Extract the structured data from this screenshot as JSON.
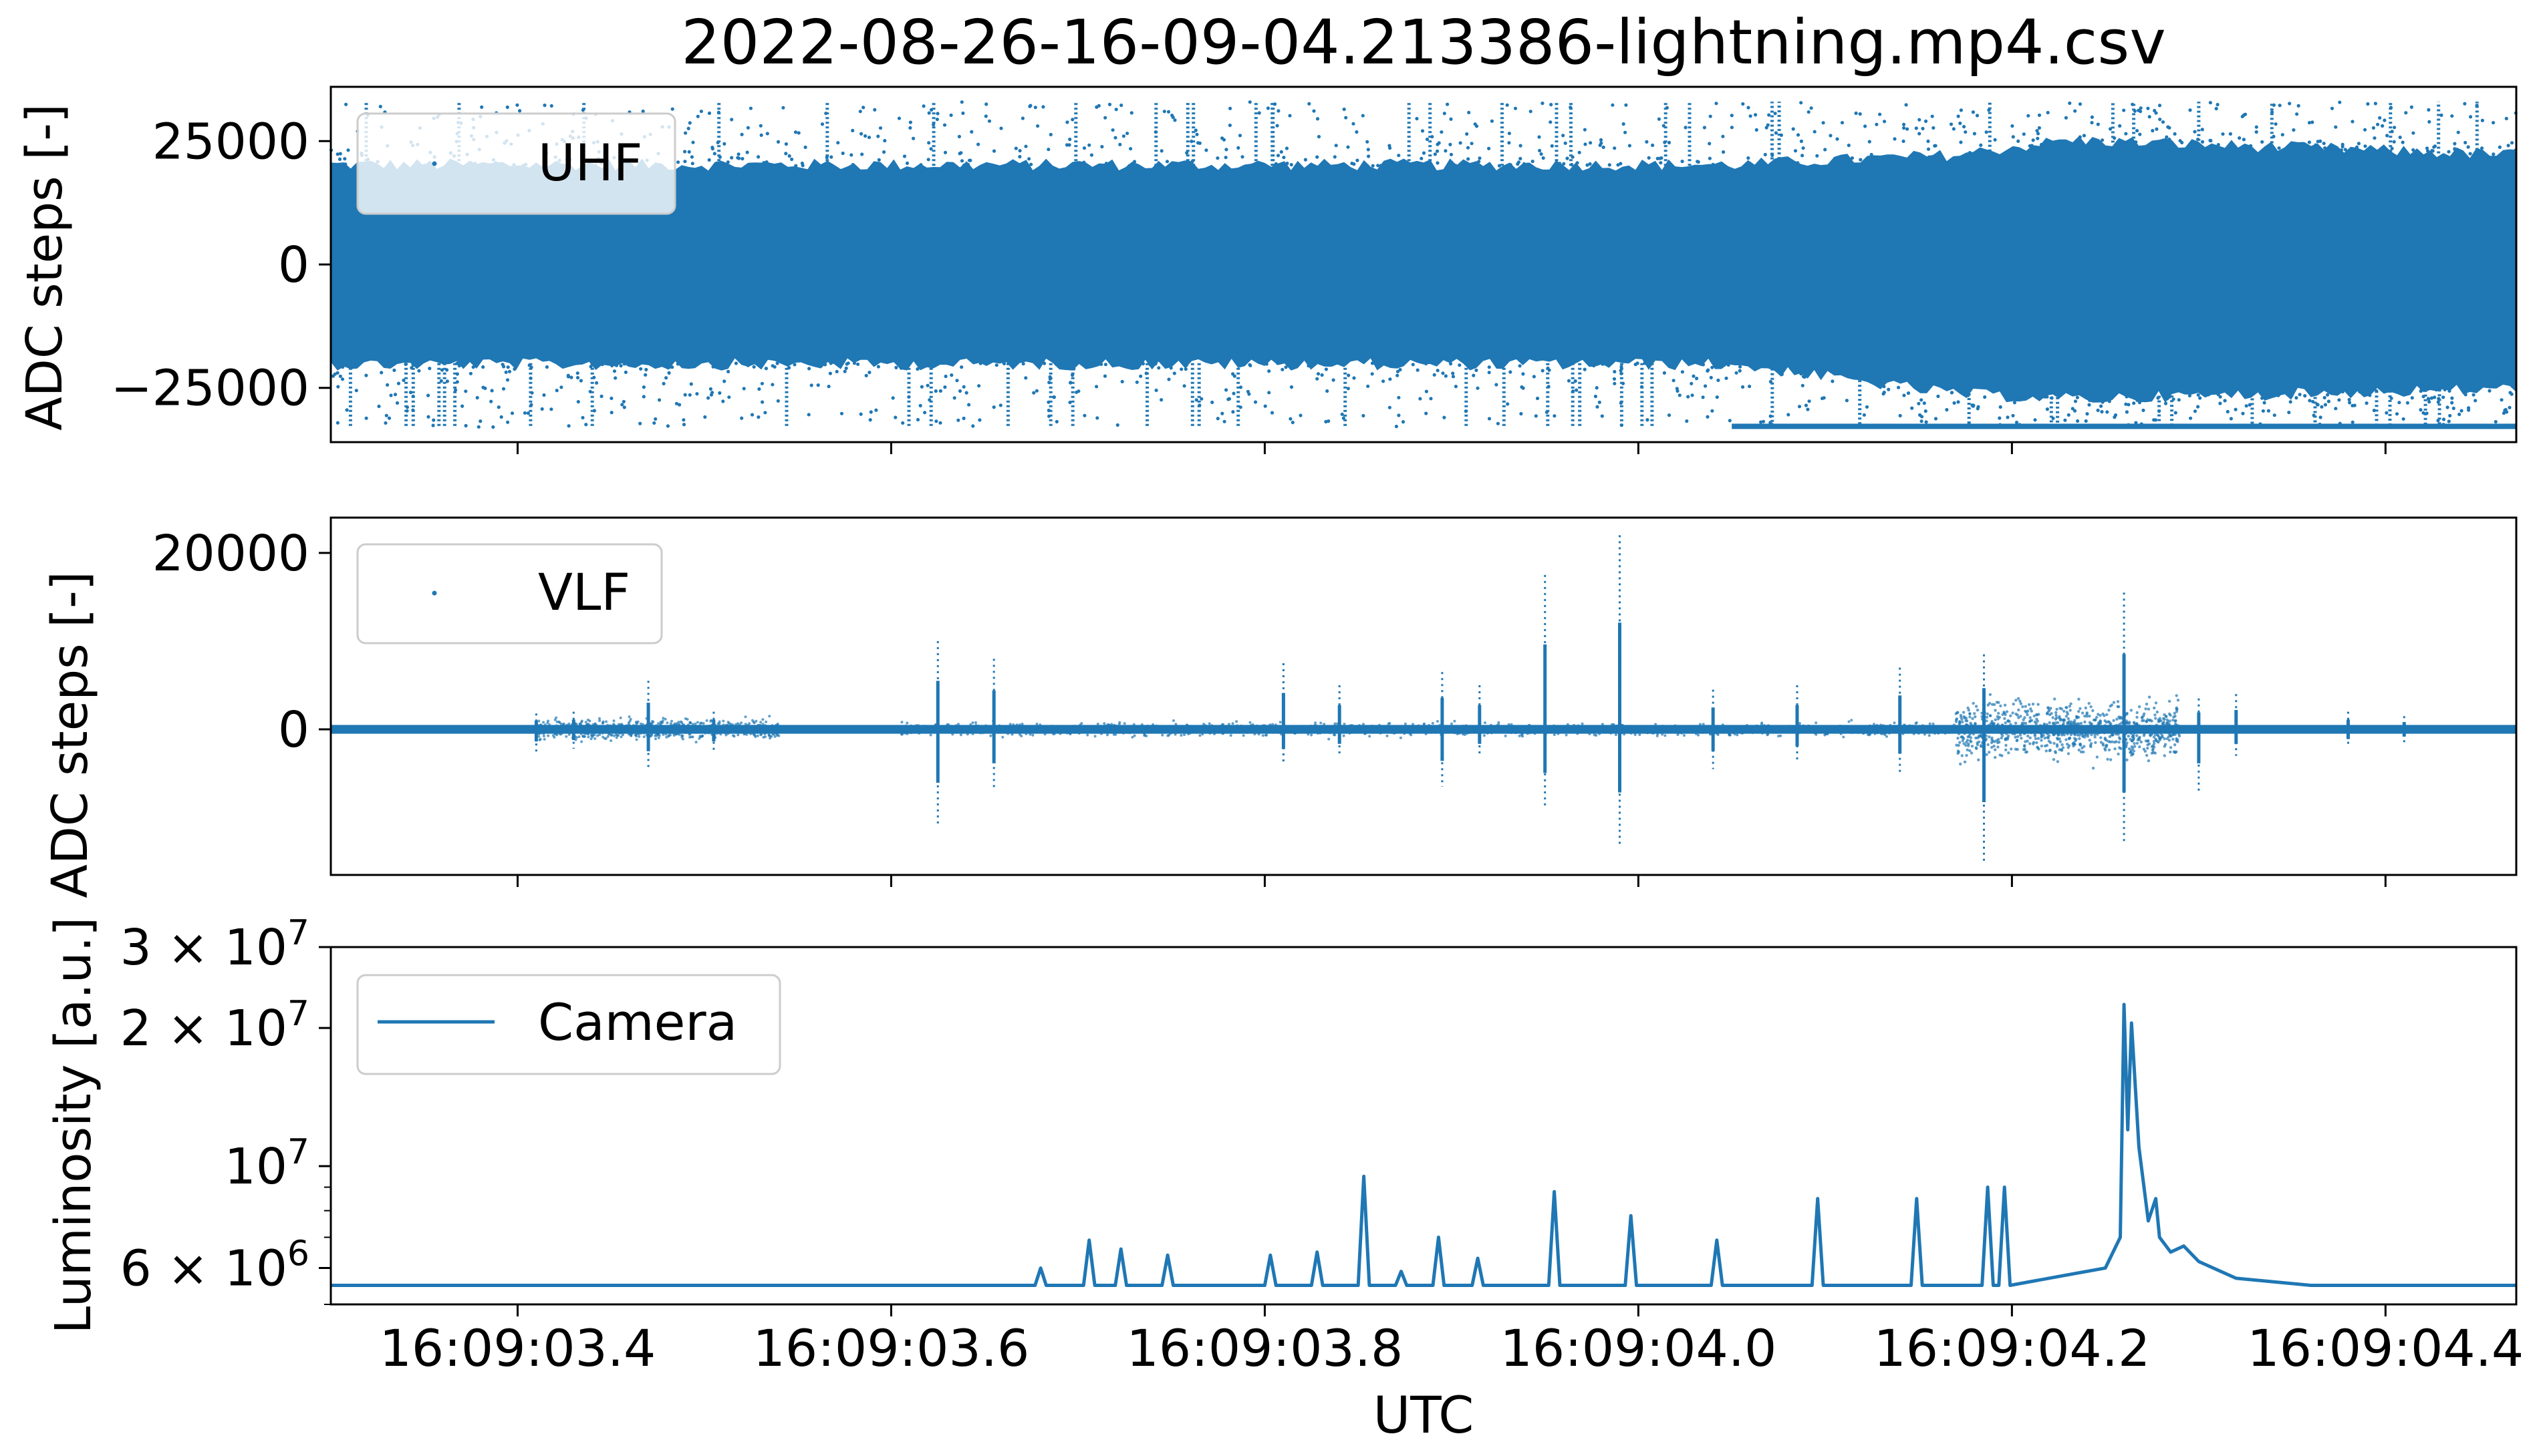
{
  "figure": {
    "title": "2022-08-26-16-09-04.213386-lightning.mp4.csv",
    "xlabel": "UTC",
    "x_tick_labels": [
      "16:09:03.4",
      "16:09:03.6",
      "16:09:03.8",
      "16:09:04.0",
      "16:09:04.2",
      "16:09:04.4"
    ],
    "color": "#1f77b4"
  },
  "chart_data": [
    {
      "type": "scatter",
      "panel": "UHF",
      "ylabel": "ADC steps [-]",
      "legend": "UHF",
      "legend_placement": "top-left",
      "xlim": [
        "16:09:03.300",
        "16:09:04.470"
      ],
      "ylim": [
        -36000,
        36000
      ],
      "yticks": [
        -25000,
        0,
        25000
      ],
      "ytick_labels": [
        "−25000",
        "0",
        "25000"
      ],
      "series": [
        {
          "name": "UHF",
          "x": [
            "16:09:03.300",
            "16:09:04.050",
            "16:09:04.170",
            "16:09:04.230",
            "16:09:04.470"
          ],
          "y_upper": [
            20000,
            20000,
            22000,
            25000,
            22000
          ],
          "y_lower": [
            -20000,
            -20000,
            -26000,
            -27000,
            -25000
          ],
          "note_values": "dense point cloud; saturated spikes reach +33000 and -33000"
        }
      ]
    },
    {
      "type": "scatter",
      "panel": "VLF",
      "ylabel": "ADC steps [-]",
      "legend": "VLF",
      "legend_placement": "top-left",
      "xlim": [
        "16:09:03.300",
        "16:09:04.470"
      ],
      "ylim": [
        -16500,
        24000
      ],
      "yticks": [
        0,
        20000
      ],
      "ytick_labels": [
        "0",
        "20000"
      ],
      "series": [
        {
          "name": "VLF",
          "baseline": 0,
          "events": [
            {
              "t": "16:09:03.410",
              "max": 1800,
              "min": -2500
            },
            {
              "t": "16:09:03.430",
              "max": 2000,
              "min": -2200
            },
            {
              "t": "16:09:03.470",
              "max": 5500,
              "min": -4500
            },
            {
              "t": "16:09:03.505",
              "max": 2000,
              "min": -2500
            },
            {
              "t": "16:09:03.625",
              "max": 10000,
              "min": -11000
            },
            {
              "t": "16:09:03.655",
              "max": 8000,
              "min": -7000
            },
            {
              "t": "16:09:03.810",
              "max": 7500,
              "min": -4000
            },
            {
              "t": "16:09:03.840",
              "max": 5000,
              "min": -3000
            },
            {
              "t": "16:09:03.895",
              "max": 6500,
              "min": -6500
            },
            {
              "t": "16:09:03.915",
              "max": 5000,
              "min": -3000
            },
            {
              "t": "16:09:03.950",
              "max": 17500,
              "min": -9000
            },
            {
              "t": "16:09:03.990",
              "max": 22000,
              "min": -13000
            },
            {
              "t": "16:09:04.040",
              "max": 4500,
              "min": -4500
            },
            {
              "t": "16:09:04.085",
              "max": 5000,
              "min": -3500
            },
            {
              "t": "16:09:04.140",
              "max": 7000,
              "min": -5000
            },
            {
              "t": "16:09:04.185",
              "max": 8500,
              "min": -15000
            },
            {
              "t": "16:09:04.260",
              "max": 15500,
              "min": -13000
            },
            {
              "t": "16:09:04.300",
              "max": 3500,
              "min": -7000
            },
            {
              "t": "16:09:04.320",
              "max": 4000,
              "min": -3000
            },
            {
              "t": "16:09:04.380",
              "max": 2000,
              "min": -2000
            },
            {
              "t": "16:09:04.410",
              "max": 1500,
              "min": -1500
            }
          ]
        }
      ]
    },
    {
      "type": "line",
      "panel": "Camera",
      "ylabel": "Luminosity [a.u.]",
      "legend": "Camera",
      "legend_placement": "top-left",
      "yscale": "log",
      "xlim": [
        "16:09:03.300",
        "16:09:04.470"
      ],
      "ylim": [
        5000000,
        30000000
      ],
      "ytick_labels": [
        {
          "value": 6000000,
          "mantissa": "6",
          "exponent": "6"
        },
        {
          "value": 10000000,
          "mantissa": "",
          "exponent": "7"
        },
        {
          "value": 20000000,
          "mantissa": "2",
          "exponent": "7"
        },
        {
          "value": 30000000,
          "mantissa": "3",
          "exponent": "7"
        }
      ],
      "series": [
        {
          "name": "Camera",
          "x": [
            "16:09:03.300",
            "16:09:03.677",
            "16:09:03.680",
            "16:09:03.683",
            "16:09:03.703",
            "16:09:03.706",
            "16:09:03.709",
            "16:09:03.720",
            "16:09:03.723",
            "16:09:03.726",
            "16:09:03.745",
            "16:09:03.748",
            "16:09:03.751",
            "16:09:03.800",
            "16:09:03.803",
            "16:09:03.806",
            "16:09:03.825",
            "16:09:03.828",
            "16:09:03.831",
            "16:09:03.850",
            "16:09:03.853",
            "16:09:03.856",
            "16:09:03.870",
            "16:09:03.873",
            "16:09:03.876",
            "16:09:03.890",
            "16:09:03.893",
            "16:09:03.896",
            "16:09:03.911",
            "16:09:03.914",
            "16:09:03.917",
            "16:09:03.952",
            "16:09:03.955",
            "16:09:03.958",
            "16:09:03.993",
            "16:09:03.996",
            "16:09:03.999",
            "16:09:04.039",
            "16:09:04.042",
            "16:09:04.045",
            "16:09:04.093",
            "16:09:04.096",
            "16:09:04.099",
            "16:09:04.146",
            "16:09:04.149",
            "16:09:04.152",
            "16:09:04.184",
            "16:09:04.187",
            "16:09:04.190",
            "16:09:04.193",
            "16:09:04.196",
            "16:09:04.199",
            "16:09:04.230",
            "16:09:04.250",
            "16:09:04.258",
            "16:09:04.260",
            "16:09:04.262",
            "16:09:04.264",
            "16:09:04.268",
            "16:09:04.273",
            "16:09:04.277",
            "16:09:04.279",
            "16:09:04.285",
            "16:09:04.292",
            "16:09:04.300",
            "16:09:04.320",
            "16:09:04.360",
            "16:09:04.470"
          ],
          "y": [
            5500000,
            5500000,
            6000000,
            5500000,
            5500000,
            6900000,
            5500000,
            5500000,
            6600000,
            5500000,
            5500000,
            6400000,
            5500000,
            5500000,
            6400000,
            5500000,
            5500000,
            6500000,
            5500000,
            5500000,
            9500000,
            5500000,
            5500000,
            5900000,
            5500000,
            5500000,
            7000000,
            5500000,
            5500000,
            6300000,
            5500000,
            5500000,
            8800000,
            5500000,
            5500000,
            7800000,
            5500000,
            5500000,
            6900000,
            5500000,
            5500000,
            8500000,
            5500000,
            5500000,
            8500000,
            5500000,
            5500000,
            9000000,
            5500000,
            5500000,
            9000000,
            5500000,
            5800000,
            6000000,
            7000000,
            22500000,
            12000000,
            20500000,
            11000000,
            7600000,
            8500000,
            7000000,
            6500000,
            6700000,
            6200000,
            5700000,
            5500000,
            5500000
          ]
        }
      ]
    }
  ]
}
